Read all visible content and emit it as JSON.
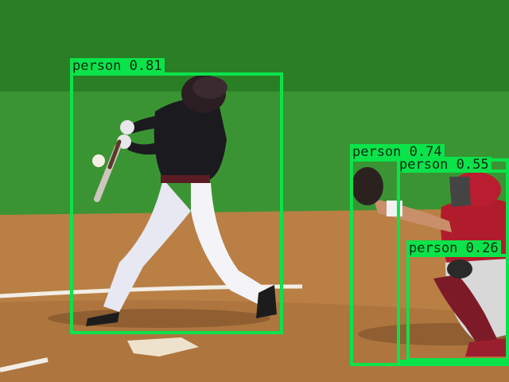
{
  "image": {
    "description_labels": [
      "baseball-field",
      "batter",
      "catcher"
    ]
  },
  "detections": [
    {
      "label": "person 0.81",
      "color": "#0be34a"
    },
    {
      "label": "person 0.74",
      "color": "#0be34a"
    },
    {
      "label": "person 0.55",
      "color": "#0be34a"
    },
    {
      "label": "person 0.26",
      "color": "#0be34a"
    }
  ]
}
